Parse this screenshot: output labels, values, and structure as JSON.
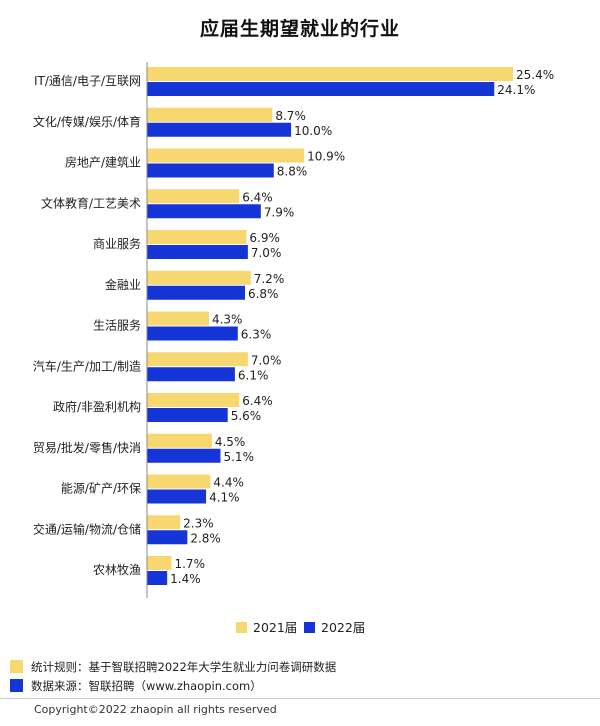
{
  "colors": {
    "y2021": "#F7D76F",
    "y2022": "#1535D6",
    "axis": "#888888"
  },
  "chart_data": {
    "type": "bar",
    "orientation": "horizontal",
    "title": "应届生期望就业的行业",
    "categories": [
      "IT/通信/电子/互联网",
      "文化/传媒/娱乐/体育",
      "房地产/建筑业",
      "文体教育/工艺美术",
      "商业服务",
      "金融业",
      "生活服务",
      "汽车/生产/加工/制造",
      "政府/非盈利机构",
      "贸易/批发/零售/快消",
      "能源/矿产/环保",
      "交通/运输/物流/仓储",
      "农林牧渔"
    ],
    "series": [
      {
        "name": "2021届",
        "values": [
          25.4,
          8.7,
          10.9,
          6.4,
          6.9,
          7.2,
          4.3,
          7.0,
          6.4,
          4.5,
          4.4,
          2.3,
          1.7
        ],
        "labels": [
          "25.4%",
          "8.7%",
          "10.9%",
          "6.4%",
          "6.9%",
          "7.2%",
          "4.3%",
          "7.0%",
          "6.4%",
          "4.5%",
          "4.4%",
          "2.3%",
          "1.7%"
        ]
      },
      {
        "name": "2022届",
        "values": [
          24.1,
          10.0,
          8.8,
          7.9,
          7.0,
          6.8,
          6.3,
          6.1,
          5.6,
          5.1,
          4.1,
          2.8,
          1.4
        ],
        "labels": [
          "24.1%",
          "10.0%",
          "8.8%",
          "7.9%",
          "7.0%",
          "6.8%",
          "6.3%",
          "6.1%",
          "5.6%",
          "5.1%",
          "4.1%",
          "2.8%",
          "1.4%"
        ]
      }
    ],
    "legend_position": "bottom",
    "grid": false
  },
  "legend": {
    "y2021": "2021届",
    "y2022": "2022届"
  },
  "notes": {
    "rule": "统计规则：基于智联招聘2022年大学生就业力问卷调研数据",
    "source": "数据来源：智联招聘（www.zhaopin.com）"
  },
  "copyright": "Copyright©2022 zhaopin all rights reserved"
}
